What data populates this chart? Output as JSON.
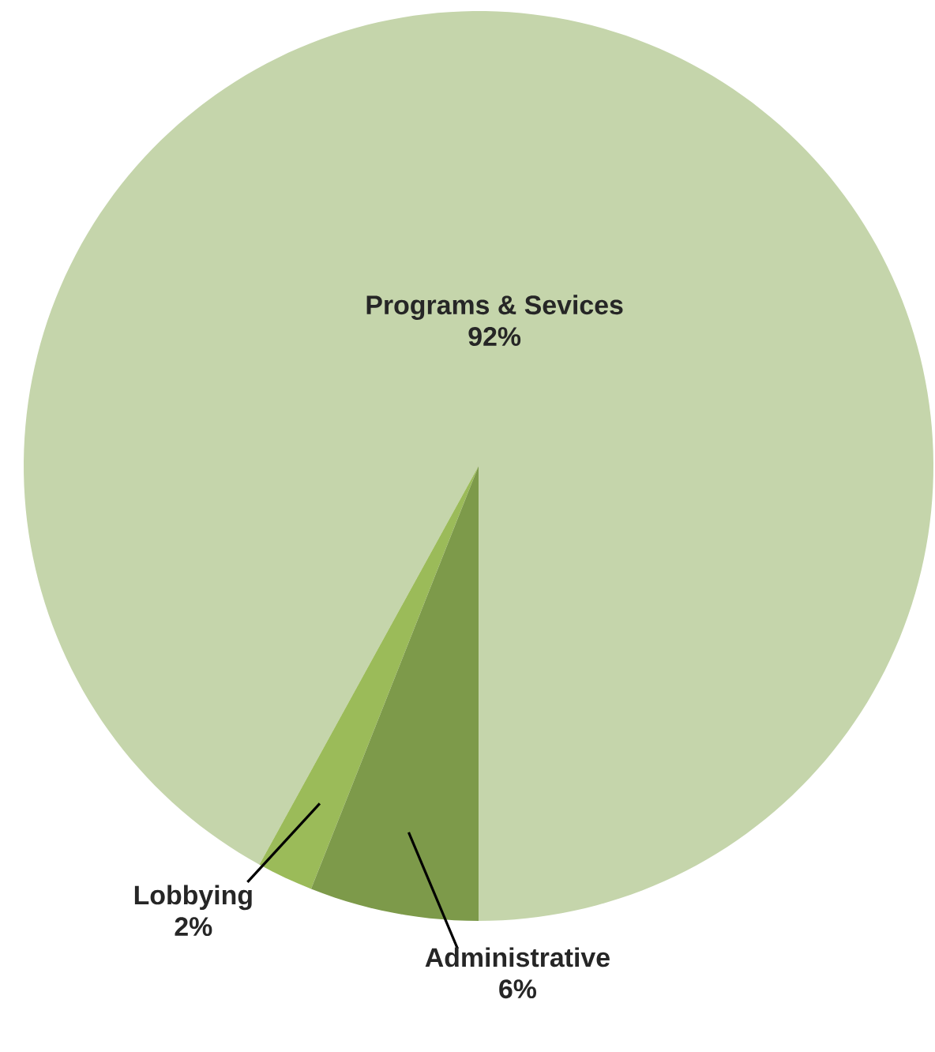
{
  "chart_data": {
    "type": "pie",
    "categories": [
      "Programs & Sevices",
      "Lobbying",
      "Administrative"
    ],
    "values": [
      92,
      2,
      6
    ],
    "value_labels": [
      "92%",
      "2%",
      "6%"
    ],
    "colors": [
      "#c5d5ab",
      "#9bbb59",
      "#7d9a4a"
    ]
  }
}
